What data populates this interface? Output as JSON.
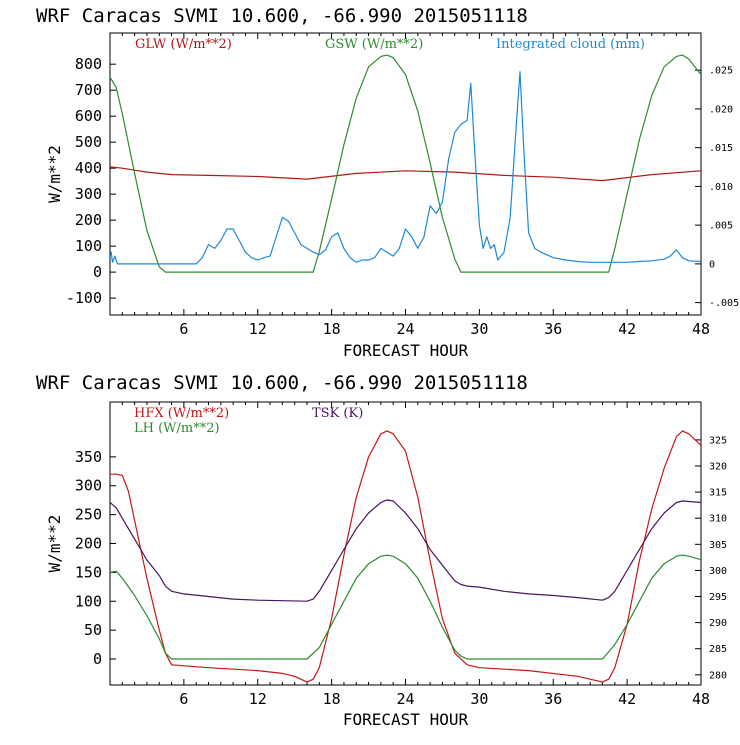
{
  "colors": {
    "glw": "#b01818",
    "gsw": "#2e8b2e",
    "cloud": "#1e88d8",
    "hfx": "#c41818",
    "lh": "#2e8b2e",
    "tsk": "#4b145e",
    "axis": "#000000"
  },
  "chart_data": [
    {
      "type": "line",
      "title": "WRF  Caracas SVMI  10.600, -66.990  2015051118",
      "xlabel": "FORECAST HOUR",
      "ylabel": "W/m**2",
      "xlim": [
        0,
        48
      ],
      "ylim": [
        -165,
        920
      ],
      "y2lim": [
        -0.0066,
        0.0298
      ],
      "x_ticks": [
        "6",
        "12",
        "18",
        "24",
        "30",
        "36",
        "42",
        "48"
      ],
      "y_ticks": [
        "-100",
        "0",
        "100",
        "200",
        "300",
        "400",
        "500",
        "600",
        "700",
        "800"
      ],
      "y2_ticks": [
        "-.005",
        "0",
        ".005",
        ".010",
        ".015",
        ".020",
        ".025"
      ],
      "legend": [
        "GLW (W/m**2)",
        "GSW (W/m**2)",
        "Integrated cloud (mm)"
      ],
      "series": [
        {
          "name": "GLW (W/m**2)",
          "axis": "left",
          "x": [
            0,
            1,
            3,
            5,
            8,
            12,
            16,
            20,
            24,
            28,
            32,
            36,
            40,
            44,
            48
          ],
          "y": [
            405,
            400,
            385,
            375,
            372,
            368,
            358,
            380,
            390,
            385,
            372,
            365,
            352,
            375,
            390
          ]
        },
        {
          "name": "GSW (W/m**2)",
          "axis": "left",
          "x": [
            0,
            0.5,
            1,
            2,
            3,
            4,
            4.5,
            16.5,
            17,
            18,
            19,
            20,
            21,
            22,
            22.5,
            23,
            24,
            25,
            26,
            27,
            28,
            28.5,
            40.5,
            41,
            42,
            43,
            44,
            45,
            46,
            46.5,
            47,
            48
          ],
          "y": [
            750,
            710,
            610,
            380,
            160,
            20,
            0,
            0,
            80,
            280,
            490,
            670,
            790,
            830,
            835,
            825,
            760,
            620,
            420,
            210,
            50,
            0,
            0,
            90,
            300,
            510,
            680,
            790,
            830,
            835,
            820,
            760
          ]
        },
        {
          "name": "Integrated cloud (mm)",
          "axis": "right",
          "x": [
            0,
            0.1,
            0.2,
            0.4,
            0.6,
            7,
            7.5,
            8,
            8.5,
            9,
            9.5,
            10,
            10.5,
            11,
            11.5,
            12,
            12.5,
            13,
            13.5,
            14,
            14.5,
            15,
            15.5,
            16,
            16.5,
            17,
            17.5,
            18,
            18.5,
            19,
            19.5,
            20,
            20.5,
            21,
            21.5,
            22,
            22.5,
            23,
            23.5,
            24,
            24.5,
            25,
            25.5,
            26,
            26.5,
            27,
            27.5,
            28,
            28.5,
            29,
            29.3,
            29.6,
            30,
            30.3,
            30.6,
            30.9,
            31.2,
            31.5,
            32,
            32.5,
            33,
            33.3,
            33.6,
            34,
            34.5,
            35,
            36,
            37,
            38,
            39,
            40,
            41,
            42,
            43,
            44,
            45,
            45.5,
            46,
            46.5,
            47,
            48
          ],
          "y": [
            0.0008,
            0.0015,
            0.0002,
            0.001,
            0,
            0,
            0.0008,
            0.0025,
            0.002,
            0.003,
            0.0045,
            0.0045,
            0.003,
            0.0015,
            0.0008,
            0.0005,
            0.0008,
            0.001,
            0.0035,
            0.006,
            0.0055,
            0.004,
            0.0025,
            0.002,
            0.0015,
            0.0012,
            0.0018,
            0.0035,
            0.004,
            0.002,
            0.0008,
            0.0002,
            0.0005,
            0.0005,
            0.0008,
            0.002,
            0.0015,
            0.001,
            0.002,
            0.0045,
            0.0035,
            0.002,
            0.0035,
            0.0075,
            0.0065,
            0.008,
            0.0135,
            0.017,
            0.018,
            0.0185,
            0.0233,
            0.015,
            0.005,
            0.002,
            0.0035,
            0.002,
            0.0025,
            0.0005,
            0.0015,
            0.006,
            0.018,
            0.0248,
            0.015,
            0.004,
            0.002,
            0.0015,
            0.0008,
            0.0005,
            0.0003,
            0.0002,
            0.0002,
            0.0002,
            0.0002,
            0.0003,
            0.0004,
            0.0006,
            0.001,
            0.0018,
            0.0008,
            0.0004,
            0.0003
          ]
        }
      ]
    },
    {
      "type": "line",
      "title": "WRF  Caracas SVMI  10.600, -66.990  2015051118",
      "xlabel": "FORECAST HOUR",
      "ylabel": "W/m**2",
      "xlim": [
        0,
        48
      ],
      "ylim": [
        -45,
        445
      ],
      "y2lim": [
        278.05,
        332.26
      ],
      "x_ticks": [
        "6",
        "12",
        "18",
        "24",
        "30",
        "36",
        "42",
        "48"
      ],
      "y_ticks": [
        "0",
        "50",
        "100",
        "150",
        "200",
        "250",
        "300",
        "350"
      ],
      "y2_ticks": [
        "280",
        "285",
        "290",
        "295",
        "300",
        "305",
        "310",
        "315",
        "320",
        "325"
      ],
      "legend": [
        "HFX (W/m**2)",
        "LH  (W/m**2)",
        "TSK (K)"
      ],
      "series": [
        {
          "name": "HFX (W/m**2)",
          "axis": "left",
          "x": [
            0,
            0.5,
            1,
            1.5,
            2,
            3,
            4,
            4.5,
            5,
            8,
            12,
            14,
            15,
            16,
            16.5,
            17,
            18,
            19,
            20,
            21,
            22,
            22.5,
            23,
            24,
            25,
            26,
            27,
            28,
            29,
            30,
            34,
            38,
            39,
            40,
            40.5,
            41,
            42,
            43,
            44,
            45,
            46,
            46.5,
            47,
            48
          ],
          "y": [
            320,
            320,
            318,
            290,
            240,
            140,
            50,
            10,
            -10,
            -15,
            -20,
            -25,
            -30,
            -40,
            -35,
            -15,
            70,
            180,
            280,
            350,
            390,
            395,
            390,
            360,
            280,
            170,
            70,
            10,
            -10,
            -15,
            -20,
            -30,
            -35,
            -40,
            -35,
            -15,
            60,
            170,
            260,
            330,
            385,
            395,
            390,
            370
          ]
        },
        {
          "name": "LH  (W/m**2)",
          "axis": "left",
          "x": [
            0,
            0.5,
            1,
            2,
            3,
            4,
            4.5,
            5,
            16,
            17,
            18,
            19,
            20,
            21,
            22,
            22.5,
            23,
            24,
            25,
            26,
            27,
            28,
            28.5,
            29,
            40,
            41,
            42,
            43,
            44,
            45,
            46,
            46.5,
            47,
            48
          ],
          "y": [
            150,
            152,
            140,
            110,
            75,
            35,
            10,
            0,
            0,
            20,
            60,
            100,
            140,
            165,
            178,
            180,
            178,
            165,
            140,
            100,
            55,
            15,
            5,
            0,
            0,
            25,
            60,
            100,
            140,
            165,
            178,
            180,
            178,
            172
          ]
        },
        {
          "name": "TSK (K)",
          "axis": "right",
          "x": [
            0,
            0.5,
            1,
            2,
            3,
            4,
            4.5,
            5,
            6,
            8,
            10,
            12,
            14,
            16,
            16.5,
            17,
            18,
            19,
            20,
            21,
            22,
            22.5,
            23,
            24,
            25,
            26,
            27,
            28,
            28.5,
            29,
            30,
            32,
            34,
            36,
            38,
            40,
            40.5,
            41,
            42,
            43,
            44,
            45,
            46,
            46.5,
            47,
            48
          ],
          "y": [
            313,
            312,
            310,
            306,
            302,
            299,
            297,
            296,
            295.5,
            295,
            294.5,
            294.3,
            294.2,
            294.1,
            294.5,
            296,
            300,
            304,
            308,
            311,
            313,
            313.5,
            313.3,
            311,
            308,
            304,
            301,
            298,
            297.3,
            297,
            296.8,
            296,
            295.5,
            295.2,
            294.8,
            294.3,
            294.8,
            296,
            300,
            304,
            308,
            311,
            313,
            313.3,
            313.2,
            313
          ]
        }
      ]
    }
  ]
}
